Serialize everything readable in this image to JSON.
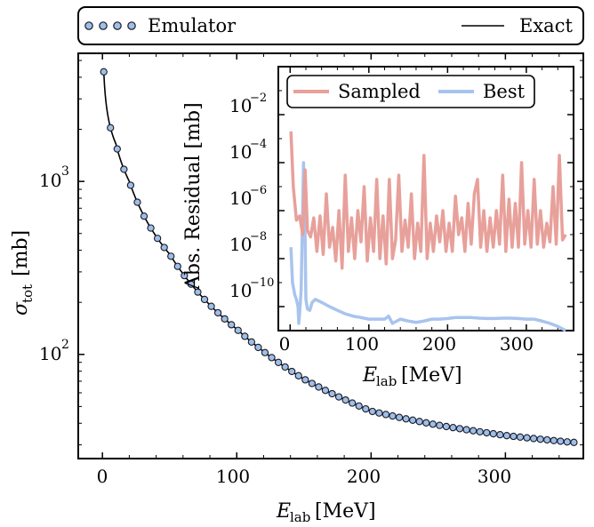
{
  "legend_top": {
    "entries": [
      {
        "label": "Emulator",
        "marker": "circle",
        "color": "#9ebfe6"
      },
      {
        "label": "Exact",
        "marker": "line",
        "color": "#000000"
      }
    ]
  },
  "chart_data": [
    {
      "type": "line",
      "xlabel": "E_lab [MeV]",
      "ylabel": "σ_tot [mb]",
      "yscale": "log",
      "xlim": [
        -18,
        358
      ],
      "ylim": [
        25,
        5500
      ],
      "xticks": [
        0,
        100,
        200,
        300
      ],
      "xtick_labels": [
        "0",
        "100",
        "200",
        "300"
      ],
      "yticks": [
        100,
        1000
      ],
      "ytick_labels": [
        "10^2",
        "10^3"
      ],
      "series": [
        {
          "name": "Emulator",
          "style": "markers",
          "color": "#9ebfe6",
          "x": [
            1,
            351
          ],
          "y_model": "sigma(E)"
        },
        {
          "name": "Exact",
          "style": "line",
          "color": "#000000"
        }
      ],
      "sample_points": [
        {
          "x": 1,
          "y": 4300
        },
        {
          "x": 10,
          "y": 1650
        },
        {
          "x": 20,
          "y": 1000
        },
        {
          "x": 50,
          "y": 380
        },
        {
          "x": 100,
          "y": 140
        },
        {
          "x": 150,
          "y": 72
        },
        {
          "x": 200,
          "y": 47
        },
        {
          "x": 250,
          "y": 39
        },
        {
          "x": 300,
          "y": 34
        },
        {
          "x": 350,
          "y": 31
        }
      ]
    },
    {
      "type": "line",
      "xlabel": "E_lab [MeV]",
      "ylabel": "Abs. Residual [mb]",
      "yscale": "log",
      "xlim": [
        -15,
        360
      ],
      "ylim": [
        1e-11,
        1
      ],
      "xticks": [
        0,
        100,
        200,
        300
      ],
      "xtick_labels": [
        "0",
        "100",
        "200",
        "300"
      ],
      "yticks": [
        1e-10,
        1e-08,
        1e-06,
        0.0001,
        0.01
      ],
      "ytick_labels": [
        "10^-10",
        "10^-8",
        "10^-6",
        "10^-4",
        "10^-2"
      ],
      "legend": [
        "Sampled",
        "Best"
      ],
      "series": [
        {
          "name": "Sampled",
          "color": "#e8a09a",
          "points": [
            [
              1,
              0.002
            ],
            [
              4,
              1e-05
            ],
            [
              8,
              4e-07
            ],
            [
              12,
              6e-07
            ],
            [
              16,
              1e-07
            ],
            [
              19,
              5e-05
            ],
            [
              22,
              1.5e-07
            ],
            [
              26,
              8e-08
            ],
            [
              30,
              5e-07
            ],
            [
              34,
              2e-08
            ],
            [
              38,
              6e-07
            ],
            [
              42,
              1.5e-08
            ],
            [
              46,
              5e-06
            ],
            [
              50,
              3e-08
            ],
            [
              54,
              2e-07
            ],
            [
              58,
              8e-09
            ],
            [
              62,
              1e-06
            ],
            [
              66,
              4e-09
            ],
            [
              70,
              3e-05
            ],
            [
              74,
              2e-08
            ],
            [
              78,
              5e-07
            ],
            [
              82,
              1e-08
            ],
            [
              86,
              1e-06
            ],
            [
              90,
              5e-08
            ],
            [
              94,
              1e-05
            ],
            [
              98,
              8e-09
            ],
            [
              102,
              5e-07
            ],
            [
              106,
              2e-08
            ],
            [
              110,
              2e-05
            ],
            [
              114,
              1e-08
            ],
            [
              118,
              6e-07
            ],
            [
              122,
              6e-09
            ],
            [
              126,
              2e-05
            ],
            [
              130,
              1e-08
            ],
            [
              134,
              6e-08
            ],
            [
              138,
              3e-05
            ],
            [
              142,
              2e-08
            ],
            [
              146,
              4e-07
            ],
            [
              150,
              3e-08
            ],
            [
              154,
              5e-06
            ],
            [
              158,
              1e-08
            ],
            [
              162,
              3e-07
            ],
            [
              166,
              2e-08
            ],
            [
              170,
              0.0002
            ],
            [
              174,
              1e-08
            ],
            [
              178,
              3e-07
            ],
            [
              182,
              2e-08
            ],
            [
              186,
              6e-07
            ],
            [
              190,
              5e-08
            ],
            [
              194,
              1e-06
            ],
            [
              198,
              2e-08
            ],
            [
              202,
              3e-07
            ],
            [
              206,
              2e-08
            ],
            [
              210,
              4e-06
            ],
            [
              214,
              1e-07
            ],
            [
              218,
              5e-07
            ],
            [
              222,
              2e-08
            ],
            [
              226,
              2e-06
            ],
            [
              230,
              4e-08
            ],
            [
              234,
              5e-06
            ],
            [
              238,
              2e-05
            ],
            [
              242,
              3e-08
            ],
            [
              246,
              1e-06
            ],
            [
              250,
              2e-08
            ],
            [
              254,
              5e-07
            ],
            [
              258,
              3e-08
            ],
            [
              262,
              1e-06
            ],
            [
              266,
              4e-08
            ],
            [
              270,
              3e-05
            ],
            [
              274,
              2e-08
            ],
            [
              278,
              3e-06
            ],
            [
              282,
              3e-08
            ],
            [
              286,
              2e-06
            ],
            [
              290,
              3e-08
            ],
            [
              294,
              0.0001
            ],
            [
              298,
              4e-08
            ],
            [
              302,
              1e-06
            ],
            [
              306,
              3e-08
            ],
            [
              310,
              2e-05
            ],
            [
              314,
              4e-08
            ],
            [
              318,
              1e-06
            ],
            [
              322,
              3e-08
            ],
            [
              326,
              3e-07
            ],
            [
              330,
              5e-08
            ],
            [
              334,
              1e-05
            ],
            [
              338,
              4e-08
            ],
            [
              342,
              0.0002
            ],
            [
              346,
              6e-08
            ],
            [
              350,
              1e-07
            ]
          ]
        },
        {
          "name": "Best",
          "color": "#a8c4ee",
          "points": [
            [
              1,
              3e-08
            ],
            [
              3,
              1e-09
            ],
            [
              6,
              3e-10
            ],
            [
              8,
              2e-10
            ],
            [
              10,
              1e-10
            ],
            [
              11,
              2e-11
            ],
            [
              12,
              5e-11
            ],
            [
              14,
              5e-10
            ],
            [
              17,
              0.0001
            ],
            [
              19,
              1e-07
            ],
            [
              20,
              2e-10
            ],
            [
              22,
              8e-11
            ],
            [
              25,
              7e-11
            ],
            [
              28,
              1.5e-10
            ],
            [
              32,
              2e-10
            ],
            [
              40,
              1.5e-10
            ],
            [
              50,
              1e-10
            ],
            [
              60,
              7e-11
            ],
            [
              70,
              5e-11
            ],
            [
              80,
              4e-11
            ],
            [
              90,
              3.5e-11
            ],
            [
              100,
              3e-11
            ],
            [
              110,
              3e-11
            ],
            [
              120,
              3e-11
            ],
            [
              125,
              4e-11
            ],
            [
              130,
              2e-11
            ],
            [
              140,
              3e-11
            ],
            [
              150,
              2.5e-11
            ],
            [
              160,
              2.2e-11
            ],
            [
              170,
              2.5e-11
            ],
            [
              180,
              3e-11
            ],
            [
              190,
              3e-11
            ],
            [
              200,
              3.2e-11
            ],
            [
              210,
              3.5e-11
            ],
            [
              220,
              3.5e-11
            ],
            [
              230,
              3.5e-11
            ],
            [
              240,
              3.3e-11
            ],
            [
              250,
              3.2e-11
            ],
            [
              260,
              3.2e-11
            ],
            [
              270,
              3.3e-11
            ],
            [
              280,
              3.3e-11
            ],
            [
              290,
              3.2e-11
            ],
            [
              300,
              3e-11
            ],
            [
              310,
              3e-11
            ],
            [
              320,
              2.5e-11
            ],
            [
              330,
              2e-11
            ],
            [
              340,
              1.5e-11
            ],
            [
              350,
              1e-11
            ]
          ]
        }
      ]
    }
  ]
}
